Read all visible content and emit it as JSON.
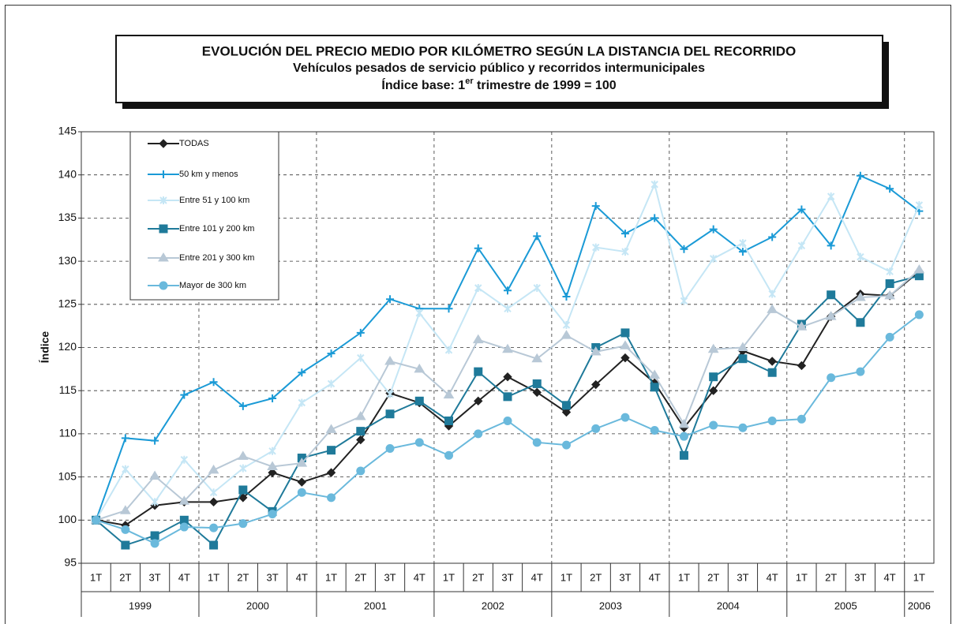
{
  "chart_data": {
    "type": "line",
    "title": "EVOLUCIÓN DEL PRECIO MEDIO POR KILÓMETRO SEGÚN LA DISTANCIA DEL RECORRIDO",
    "subtitle": "Vehículos pesados de servicio público y recorridos intermunicipales",
    "base_note": {
      "before": "Índice base: 1",
      "sup": "er",
      "after": " trimestre de 1999 = 100"
    },
    "y_label": "Índice",
    "groups": [
      {
        "label": "1999",
        "categories": [
          "1T",
          "2T",
          "3T",
          "4T"
        ]
      },
      {
        "label": "2000",
        "categories": [
          "1T",
          "2T",
          "3T",
          "4T"
        ]
      },
      {
        "label": "2001",
        "categories": [
          "1T",
          "2T",
          "3T",
          "4T"
        ]
      },
      {
        "label": "2002",
        "categories": [
          "1T",
          "2T",
          "3T",
          "4T"
        ]
      },
      {
        "label": "2003",
        "categories": [
          "1T",
          "2T",
          "3T",
          "4T"
        ]
      },
      {
        "label": "2004",
        "categories": [
          "1T",
          "2T",
          "3T",
          "4T"
        ]
      },
      {
        "label": "2005",
        "categories": [
          "1T",
          "2T",
          "3T",
          "4T"
        ]
      },
      {
        "label": "2006",
        "categories": [
          "1T"
        ]
      }
    ],
    "ylim": [
      95,
      145
    ],
    "yticks": [
      95,
      100,
      105,
      110,
      115,
      120,
      125,
      130,
      135,
      140,
      145
    ],
    "grid": true,
    "legend": "top-left",
    "series": [
      {
        "name": "TODAS",
        "color": "#222222",
        "marker": "diamond",
        "values": [
          100,
          99.4,
          101.7,
          102.1,
          102.1,
          102.6,
          105.5,
          104.4,
          105.5,
          109.3,
          114.7,
          113.6,
          110.9,
          113.8,
          116.6,
          114.8,
          112.5,
          115.7,
          118.8,
          115.9,
          110.7,
          115,
          119.6,
          118.4,
          117.9,
          123.6,
          126.2,
          126,
          128.8
        ]
      },
      {
        "name": "50 km y menos",
        "color": "#1a9ad6",
        "marker": "plus",
        "values": [
          100,
          109.5,
          109.2,
          114.5,
          116,
          113.2,
          114.1,
          117.1,
          119.3,
          121.7,
          125.6,
          124.5,
          124.5,
          131.5,
          126.6,
          132.9,
          125.9,
          136.4,
          133.2,
          135,
          131.4,
          133.7,
          131.1,
          132.8,
          136,
          131.8,
          139.9,
          138.4,
          135.8
        ]
      },
      {
        "name": "Entre 51 y 100 km",
        "color": "#c5e6f5",
        "marker": "star",
        "values": [
          100,
          105.9,
          102.1,
          107,
          103.2,
          106,
          108,
          113.6,
          115.8,
          118.8,
          114.6,
          124,
          119.7,
          126.9,
          124.5,
          126.9,
          122.6,
          131.6,
          131.1,
          138.9,
          125.4,
          130.3,
          132.1,
          126.2,
          131.8,
          137.5,
          130.5,
          128.8,
          136.5
        ]
      },
      {
        "name": "Entre 101 y 200 km",
        "color": "#1f7a9a",
        "marker": "square",
        "values": [
          100,
          97.1,
          98.2,
          100,
          97.1,
          103.5,
          101,
          107.2,
          108.1,
          110.3,
          112.3,
          113.8,
          111.5,
          117.2,
          114.3,
          115.8,
          113.3,
          120,
          121.7,
          115.4,
          107.5,
          116.6,
          118.7,
          117.1,
          122.7,
          126.1,
          122.9,
          127.4,
          128.3
        ]
      },
      {
        "name": "Entre 201 y 300 km",
        "color": "#b8c8d6",
        "marker": "triangle",
        "values": [
          100,
          101.1,
          105.1,
          102.2,
          105.8,
          107.4,
          106.2,
          106.6,
          110.5,
          112,
          118.4,
          117.5,
          114.5,
          120.9,
          119.8,
          118.7,
          121.4,
          119.5,
          120.2,
          116.8,
          111.1,
          119.8,
          120,
          124.4,
          122.4,
          123.6,
          125.8,
          126,
          129
        ]
      },
      {
        "name": "Mayor de 300 km",
        "color": "#6ab9dc",
        "marker": "circle",
        "values": [
          100,
          98.9,
          97.3,
          99.2,
          99.1,
          99.6,
          100.7,
          103.2,
          102.6,
          105.7,
          108.3,
          109,
          107.5,
          110,
          111.5,
          109,
          108.7,
          110.6,
          111.9,
          110.4,
          109.7,
          111,
          110.7,
          111.5,
          111.7,
          116.5,
          117.2,
          121.2,
          123.8
        ]
      }
    ]
  }
}
